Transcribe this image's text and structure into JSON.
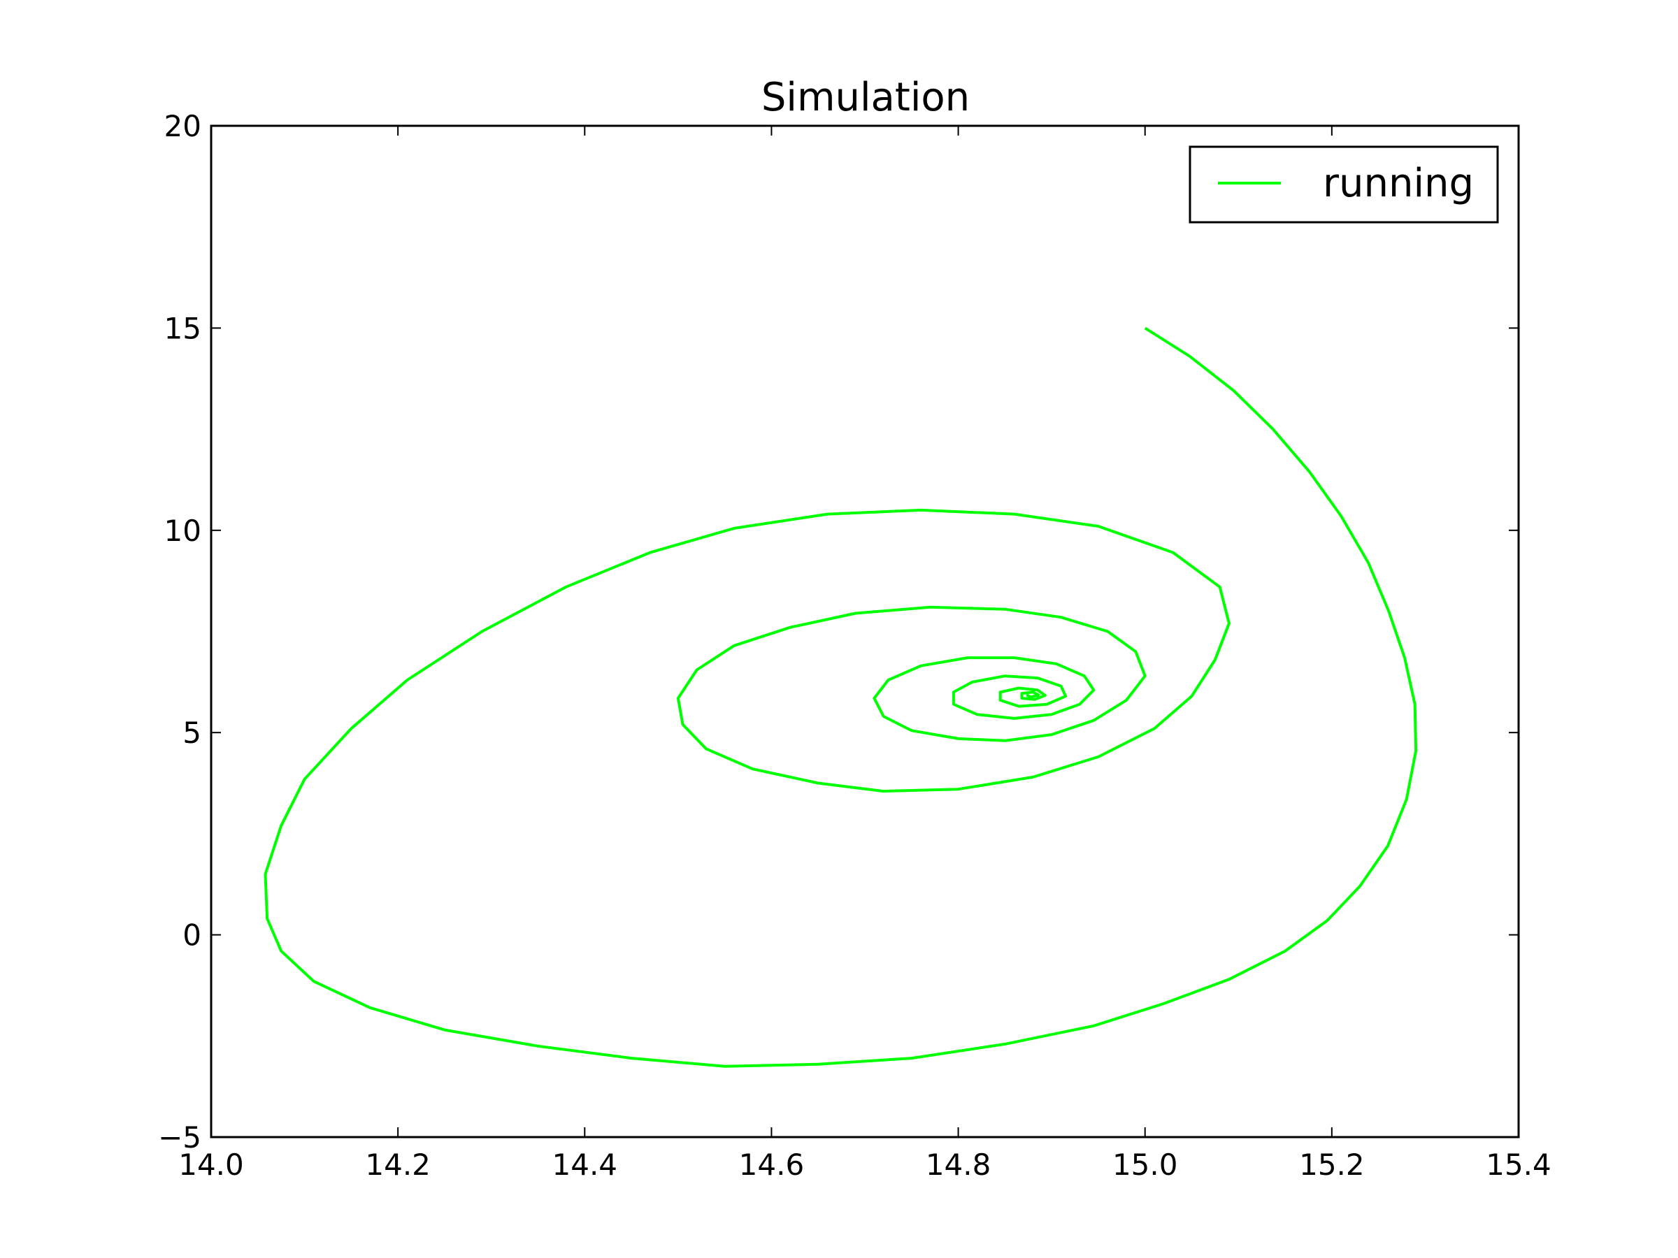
{
  "chart_data": {
    "type": "line",
    "title": "Simulation",
    "xlabel": "",
    "ylabel": "",
    "xlim": [
      14.0,
      15.4
    ],
    "ylim": [
      -5,
      20
    ],
    "grid": false,
    "legend": {
      "placement": "top-right",
      "entries": [
        {
          "label": "running",
          "color": "#00ff00"
        }
      ]
    },
    "x_ticks": [
      {
        "value": 14.0,
        "label": "14.0"
      },
      {
        "value": 14.2,
        "label": "14.2"
      },
      {
        "value": 14.4,
        "label": "14.4"
      },
      {
        "value": 14.6,
        "label": "14.6"
      },
      {
        "value": 14.8,
        "label": "14.8"
      },
      {
        "value": 15.0,
        "label": "15.0"
      },
      {
        "value": 15.2,
        "label": "15.2"
      },
      {
        "value": 15.4,
        "label": "15.4"
      }
    ],
    "y_ticks": [
      {
        "value": -5,
        "label": "−5"
      },
      {
        "value": 0,
        "label": "0"
      },
      {
        "value": 5,
        "label": "5"
      },
      {
        "value": 10,
        "label": "10"
      },
      {
        "value": 15,
        "label": "15"
      },
      {
        "value": 20,
        "label": "20"
      }
    ],
    "series": [
      {
        "name": "running",
        "color": "#00ff00",
        "points": [
          [
            15.0,
            15.0
          ],
          [
            15.048,
            14.3
          ],
          [
            15.095,
            13.45
          ],
          [
            15.137,
            12.5
          ],
          [
            15.176,
            11.45
          ],
          [
            15.21,
            10.35
          ],
          [
            15.239,
            9.2
          ],
          [
            15.261,
            8.0
          ],
          [
            15.278,
            6.85
          ],
          [
            15.289,
            5.7
          ],
          [
            15.29,
            4.55
          ],
          [
            15.28,
            3.35
          ],
          [
            15.26,
            2.2
          ],
          [
            15.23,
            1.2
          ],
          [
            15.195,
            0.35
          ],
          [
            15.15,
            -0.4
          ],
          [
            15.09,
            -1.1
          ],
          [
            15.02,
            -1.7
          ],
          [
            14.945,
            -2.25
          ],
          [
            14.85,
            -2.7
          ],
          [
            14.75,
            -3.05
          ],
          [
            14.65,
            -3.2
          ],
          [
            14.55,
            -3.25
          ],
          [
            14.45,
            -3.05
          ],
          [
            14.35,
            -2.75
          ],
          [
            14.25,
            -2.35
          ],
          [
            14.17,
            -1.8
          ],
          [
            14.11,
            -1.15
          ],
          [
            14.075,
            -0.4
          ],
          [
            14.06,
            0.4
          ],
          [
            14.058,
            1.5
          ],
          [
            14.075,
            2.7
          ],
          [
            14.1,
            3.85
          ],
          [
            14.15,
            5.1
          ],
          [
            14.21,
            6.3
          ],
          [
            14.29,
            7.5
          ],
          [
            14.38,
            8.6
          ],
          [
            14.47,
            9.45
          ],
          [
            14.56,
            10.05
          ],
          [
            14.66,
            10.4
          ],
          [
            14.76,
            10.5
          ],
          [
            14.86,
            10.4
          ],
          [
            14.95,
            10.1
          ],
          [
            15.03,
            9.45
          ],
          [
            15.08,
            8.6
          ],
          [
            15.09,
            7.7
          ],
          [
            15.075,
            6.8
          ],
          [
            15.05,
            5.9
          ],
          [
            15.01,
            5.1
          ],
          [
            14.95,
            4.4
          ],
          [
            14.88,
            3.9
          ],
          [
            14.8,
            3.6
          ],
          [
            14.72,
            3.55
          ],
          [
            14.65,
            3.75
          ],
          [
            14.58,
            4.1
          ],
          [
            14.53,
            4.6
          ],
          [
            14.505,
            5.2
          ],
          [
            14.5,
            5.85
          ],
          [
            14.52,
            6.55
          ],
          [
            14.56,
            7.15
          ],
          [
            14.62,
            7.6
          ],
          [
            14.69,
            7.95
          ],
          [
            14.77,
            8.1
          ],
          [
            14.85,
            8.05
          ],
          [
            14.91,
            7.85
          ],
          [
            14.96,
            7.5
          ],
          [
            14.99,
            7.0
          ],
          [
            15.0,
            6.4
          ],
          [
            14.98,
            5.8
          ],
          [
            14.945,
            5.3
          ],
          [
            14.9,
            4.95
          ],
          [
            14.85,
            4.8
          ],
          [
            14.8,
            4.85
          ],
          [
            14.75,
            5.05
          ],
          [
            14.72,
            5.4
          ],
          [
            14.71,
            5.85
          ],
          [
            14.725,
            6.3
          ],
          [
            14.76,
            6.65
          ],
          [
            14.81,
            6.85
          ],
          [
            14.86,
            6.85
          ],
          [
            14.905,
            6.7
          ],
          [
            14.935,
            6.4
          ],
          [
            14.945,
            6.05
          ],
          [
            14.93,
            5.7
          ],
          [
            14.9,
            5.45
          ],
          [
            14.86,
            5.35
          ],
          [
            14.82,
            5.45
          ],
          [
            14.795,
            5.7
          ],
          [
            14.795,
            6.0
          ],
          [
            14.815,
            6.25
          ],
          [
            14.85,
            6.4
          ],
          [
            14.885,
            6.35
          ],
          [
            14.91,
            6.15
          ],
          [
            14.915,
            5.9
          ],
          [
            14.895,
            5.7
          ],
          [
            14.865,
            5.65
          ],
          [
            14.845,
            5.8
          ],
          [
            14.845,
            6.0
          ],
          [
            14.865,
            6.1
          ],
          [
            14.885,
            6.05
          ],
          [
            14.893,
            5.92
          ],
          [
            14.882,
            5.82
          ],
          [
            14.868,
            5.85
          ],
          [
            14.868,
            5.97
          ],
          [
            14.88,
            6.0
          ],
          [
            14.886,
            5.93
          ],
          [
            14.878,
            5.88
          ],
          [
            14.873,
            5.93
          ]
        ]
      }
    ]
  }
}
